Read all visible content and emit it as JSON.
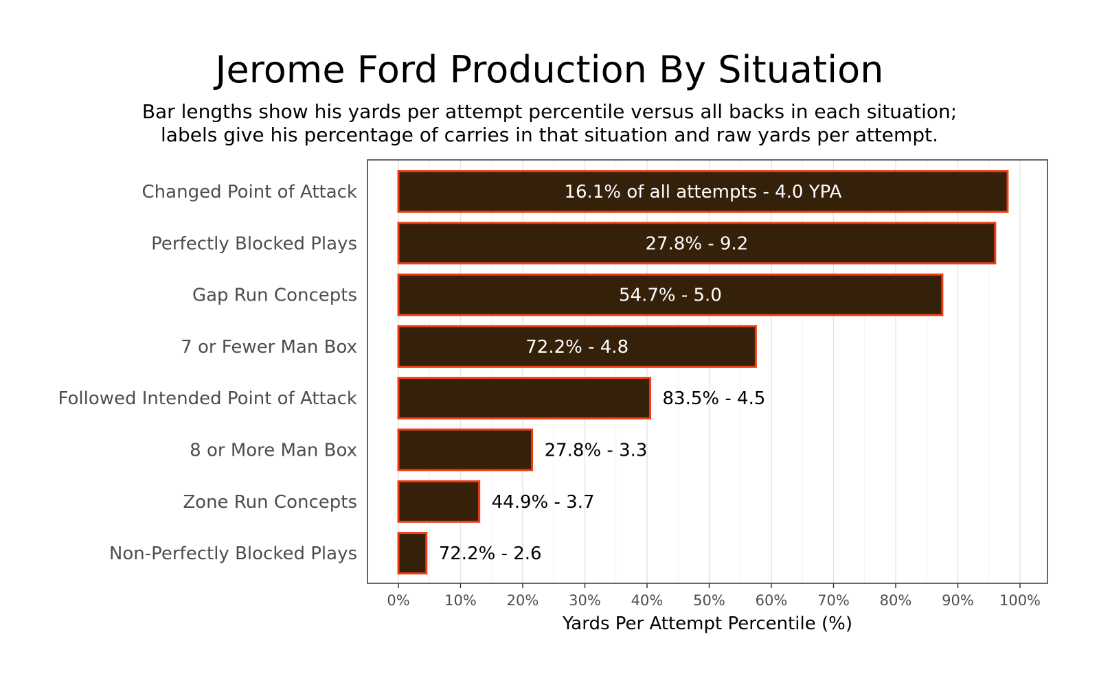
{
  "chart_data": {
    "type": "bar",
    "orientation": "horizontal",
    "title": "Jerome Ford Production By Situation",
    "subtitle_lines": [
      "Bar lengths show his yards per attempt percentile versus all backs in each situation;",
      "labels give his percentage of carries in that situation and raw yards per attempt."
    ],
    "xlabel": "Yards Per Attempt Percentile (%)",
    "ylabel": "",
    "xlim": [
      0,
      100
    ],
    "x_ticks": [
      0,
      10,
      20,
      30,
      40,
      50,
      60,
      70,
      80,
      90,
      100
    ],
    "x_tick_labels": [
      "0%",
      "10%",
      "20%",
      "30%",
      "40%",
      "50%",
      "60%",
      "70%",
      "80%",
      "90%",
      "100%"
    ],
    "grid": true,
    "legend": "none",
    "bar_fill": "#35200A",
    "bar_outline": "#F03C12",
    "categories": [
      "Changed Point of Attack",
      "Perfectly Blocked Plays",
      "Gap Run Concepts",
      "7 or Fewer Man Box",
      "Followed Intended Point of Attack",
      "8 or More Man Box",
      "Zone Run Concepts",
      "Non-Perfectly Blocked Plays"
    ],
    "values": [
      98,
      96,
      87.5,
      57.5,
      40.5,
      21.5,
      13,
      4.5
    ],
    "labels": [
      "16.1% of all attempts - 4.0 YPA",
      "27.8% - 9.2",
      "54.7% - 5.0",
      "72.2% - 4.8",
      "83.5% - 4.5",
      "27.8% - 3.3",
      "44.9% - 3.7",
      "72.2% - 2.6"
    ],
    "label_positions": [
      "inside",
      "inside",
      "inside",
      "inside",
      "outside",
      "outside",
      "outside",
      "outside"
    ]
  }
}
